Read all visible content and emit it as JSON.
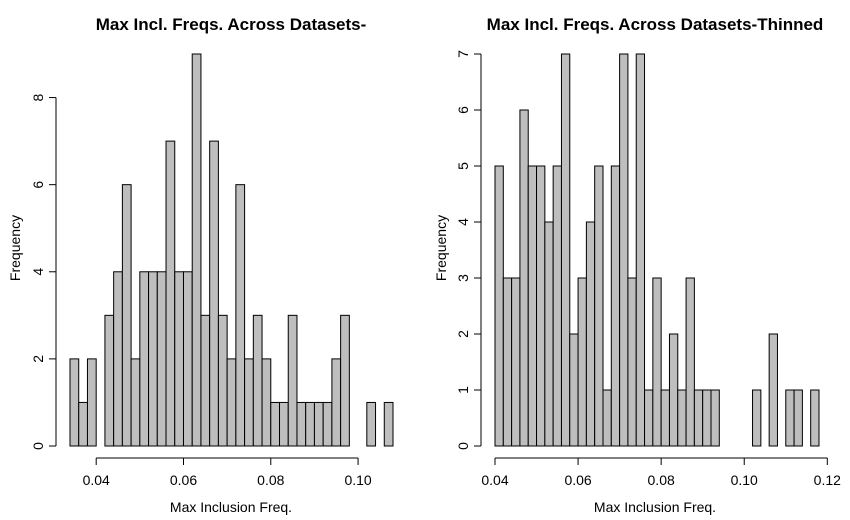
{
  "chart_data": [
    {
      "type": "histogram",
      "title": "Max Incl. Freqs. Across Datasets-",
      "xlabel": "Max Inclusion Freq.",
      "ylabel": "Frequency",
      "bin_width": 0.002,
      "bin_start": 0.034,
      "xlim": [
        0.034,
        0.108
      ],
      "ylim": [
        0,
        9
      ],
      "x_ticks": [
        "0.04",
        "0.06",
        "0.08",
        "0.10"
      ],
      "x_tick_values": [
        0.04,
        0.06,
        0.08,
        0.1
      ],
      "y_ticks": [
        "0",
        "2",
        "4",
        "6",
        "8"
      ],
      "y_tick_values": [
        0,
        2,
        4,
        6,
        8
      ],
      "bar_color": "#bebebe",
      "values": [
        2,
        1,
        2,
        0,
        3,
        4,
        6,
        2,
        4,
        4,
        4,
        7,
        4,
        4,
        9,
        3,
        7,
        3,
        2,
        6,
        2,
        3,
        2,
        1,
        1,
        3,
        1,
        1,
        1,
        1,
        2,
        3,
        0,
        0,
        1,
        0,
        1
      ]
    },
    {
      "type": "histogram",
      "title": "Max Incl. Freqs. Across Datasets-Thinned",
      "xlabel": "Max Inclusion Freq.",
      "ylabel": "Frequency",
      "bin_width": 0.002,
      "bin_start": 0.04,
      "xlim": [
        0.04,
        0.118
      ],
      "ylim": [
        0,
        7
      ],
      "x_ticks": [
        "0.04",
        "0.06",
        "0.08",
        "0.10",
        "0.12"
      ],
      "x_tick_values": [
        0.04,
        0.06,
        0.08,
        0.1,
        0.12
      ],
      "y_ticks": [
        "0",
        "1",
        "2",
        "3",
        "4",
        "5",
        "6",
        "7"
      ],
      "y_tick_values": [
        0,
        1,
        2,
        3,
        4,
        5,
        6,
        7
      ],
      "bar_color": "#bebebe",
      "values": [
        5,
        3,
        3,
        6,
        5,
        5,
        4,
        5,
        7,
        2,
        3,
        4,
        5,
        1,
        5,
        7,
        3,
        7,
        1,
        3,
        1,
        2,
        1,
        3,
        1,
        1,
        1,
        0,
        0,
        0,
        0,
        1,
        0,
        2,
        0,
        1,
        1,
        0,
        1
      ]
    }
  ]
}
